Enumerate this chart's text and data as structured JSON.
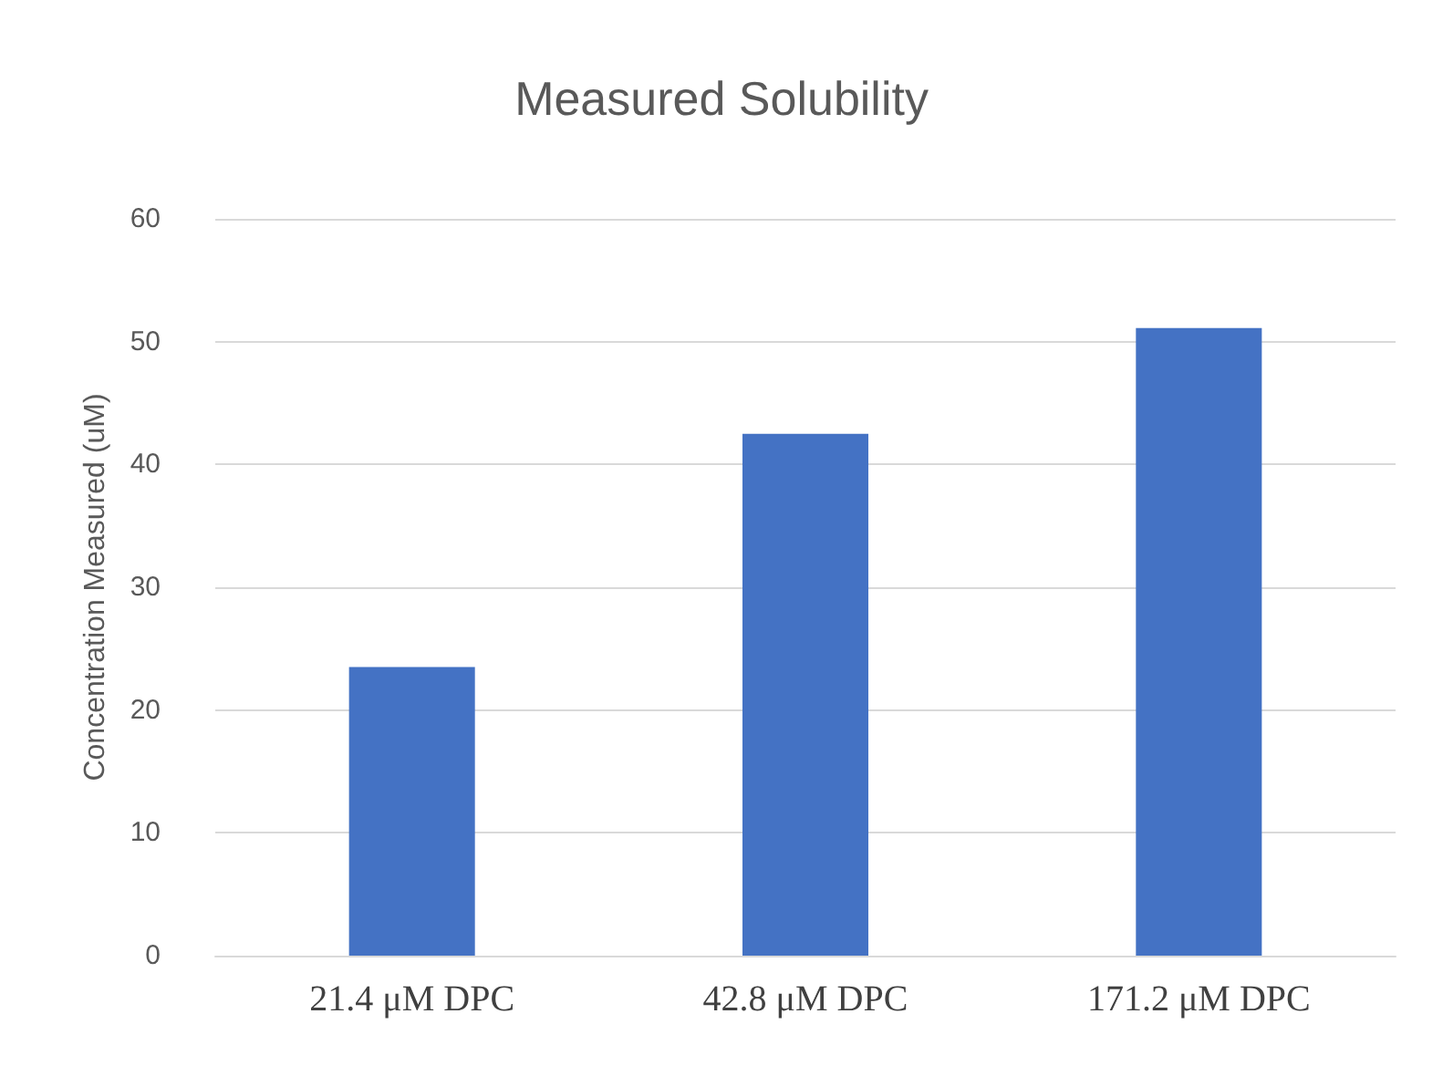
{
  "chart_data": {
    "type": "bar",
    "title": "Measured Solubility",
    "ylabel": "Concentration Measured (uM)",
    "categories": [
      "21.4 μM DPC",
      "42.8 μM DPC",
      "171.2 μM DPC"
    ],
    "values": [
      23.5,
      42.5,
      51.1
    ],
    "color": "#4472c4",
    "ylim": [
      0,
      60
    ],
    "yticks": [
      0,
      10,
      20,
      30,
      40,
      50,
      60
    ],
    "grid": "y"
  }
}
